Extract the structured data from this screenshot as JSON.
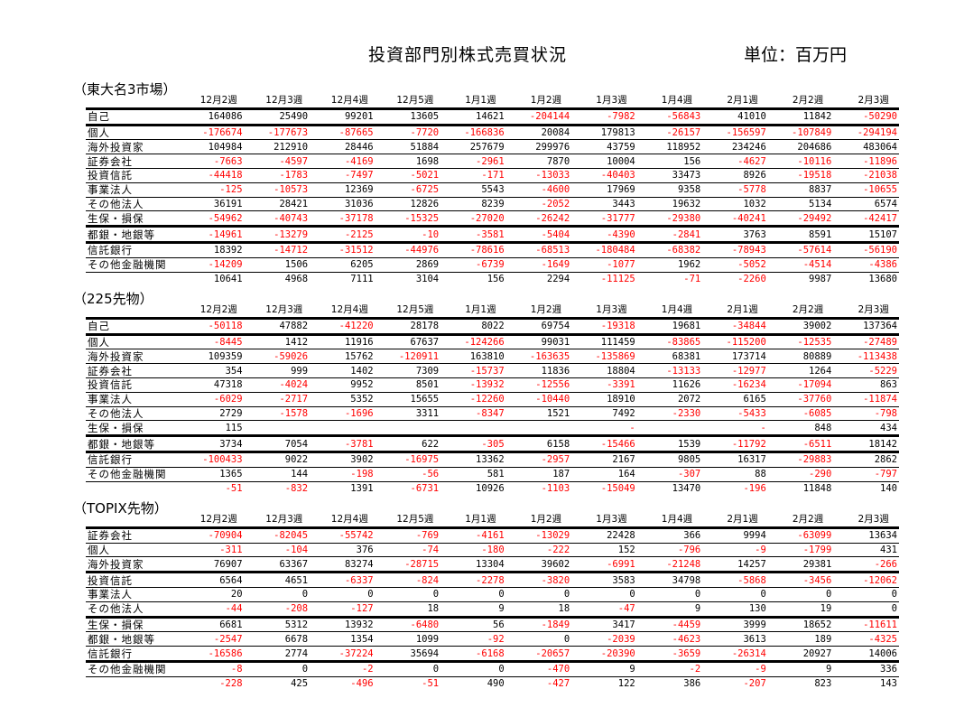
{
  "title": "投資部門別株式売買状況",
  "unit": "単位：百万円",
  "negative_color": "#ff0000",
  "sections": [
    {
      "label": "（東大名3市場）",
      "columns": [
        "12月2週",
        "12月3週",
        "12月4週",
        "12月5週",
        "1月1週",
        "1月2週",
        "1月3週",
        "1月4週",
        "2月1週",
        "2月2週",
        "2月3週"
      ],
      "rows": [
        {
          "label": "自己",
          "values": [
            "164086",
            "25490",
            "99201",
            "13605",
            "14621",
            "-204144",
            "-7982",
            "-56843",
            "41010",
            "11842",
            "-50290"
          ]
        },
        {
          "label": "個人",
          "values": [
            "-176674",
            "-177673",
            "-87665",
            "-7720",
            "-166836",
            "20084",
            "179813",
            "-26157",
            "-156597",
            "-107849",
            "-294194"
          ]
        },
        {
          "label": "海外投資家",
          "values": [
            "104984",
            "212910",
            "28446",
            "51884",
            "257679",
            "299976",
            "43759",
            "118952",
            "234246",
            "204686",
            "483064"
          ]
        },
        {
          "label": "証券会社",
          "values": [
            "-7663",
            "-4597",
            "-4169",
            "1698",
            "-2961",
            "7870",
            "10004",
            "156",
            "-4627",
            "-10116",
            "-11896"
          ]
        },
        {
          "label": "投資信託",
          "values": [
            "-44418",
            "-1783",
            "-7497",
            "-5021",
            "-171",
            "-13033",
            "-40403",
            "33473",
            "8926",
            "-19518",
            "-21038"
          ]
        },
        {
          "label": "事業法人",
          "values": [
            "-125",
            "-10573",
            "12369",
            "-6725",
            "5543",
            "-4600",
            "17969",
            "9358",
            "-5778",
            "8837",
            "-10655"
          ]
        },
        {
          "label": "その他法人",
          "values": [
            "36191",
            "28421",
            "31036",
            "12826",
            "8239",
            "-2052",
            "3443",
            "19632",
            "1032",
            "5134",
            "6574"
          ]
        },
        {
          "label": "生保・損保",
          "values": [
            "-54962",
            "-40743",
            "-37178",
            "-15325",
            "-27020",
            "-26242",
            "-31777",
            "-29380",
            "-40241",
            "-29492",
            "-42417"
          ]
        },
        {
          "label": "都銀・地銀等",
          "values": [
            "-14961",
            "-13279",
            "-2125",
            "-10",
            "-3581",
            "-5404",
            "-4390",
            "-2841",
            "3763",
            "8591",
            "15107"
          ]
        },
        {
          "label": "信託銀行",
          "values": [
            "18392",
            "-14712",
            "-31512",
            "-44976",
            "-78616",
            "-68513",
            "-180484",
            "-68382",
            "-78943",
            "-57614",
            "-56190"
          ]
        },
        {
          "label": "その他金融機関",
          "values": [
            "-14209",
            "1506",
            "6205",
            "2869",
            "-6739",
            "-1649",
            "-1077",
            "1962",
            "-5052",
            "-4514",
            "-4386"
          ]
        },
        {
          "label": "",
          "values": [
            "10641",
            "4968",
            "7111",
            "3104",
            "156",
            "2294",
            "-11125",
            "-71",
            "-2260",
            "9987",
            "13680"
          ]
        }
      ]
    },
    {
      "label": "（225先物）",
      "columns": [
        "12月2週",
        "12月3週",
        "12月4週",
        "12月5週",
        "1月1週",
        "1月2週",
        "1月3週",
        "1月4週",
        "2月1週",
        "2月2週",
        "2月3週"
      ],
      "rows": [
        {
          "label": "自己",
          "values": [
            "-50118",
            "47882",
            "-41220",
            "28178",
            "8022",
            "69754",
            "-19318",
            "19681",
            "-34844",
            "39002",
            "137364"
          ]
        },
        {
          "label": "個人",
          "values": [
            "-8445",
            "1412",
            "11916",
            "67637",
            "-124266",
            "99031",
            "111459",
            "-83865",
            "-115200",
            "-12535",
            "-27489"
          ]
        },
        {
          "label": "海外投資家",
          "values": [
            "109359",
            "-59026",
            "15762",
            "-120911",
            "163810",
            "-163635",
            "-135869",
            "68381",
            "173714",
            "80889",
            "-113438"
          ]
        },
        {
          "label": "証券会社",
          "values": [
            "354",
            "999",
            "1402",
            "7309",
            "-15737",
            "11836",
            "18804",
            "-13133",
            "-12977",
            "1264",
            "-5229"
          ]
        },
        {
          "label": "投資信託",
          "values": [
            "47318",
            "-4024",
            "9952",
            "8501",
            "-13932",
            "-12556",
            "-3391",
            "11626",
            "-16234",
            "-17094",
            "863"
          ]
        },
        {
          "label": "事業法人",
          "values": [
            "-6029",
            "-2717",
            "5352",
            "15655",
            "-12260",
            "-10440",
            "18910",
            "2072",
            "6165",
            "-37760",
            "-11874"
          ]
        },
        {
          "label": "その他法人",
          "values": [
            "2729",
            "-1578",
            "-1696",
            "3311",
            "-8347",
            "1521",
            "7492",
            "-2330",
            "-5433",
            "-6085",
            "-798"
          ]
        },
        {
          "label": "生保・損保",
          "values": [
            "115",
            "",
            "",
            "",
            "",
            "",
            "-",
            "",
            "-",
            "848",
            "434"
          ]
        },
        {
          "label": "都銀・地銀等",
          "values": [
            "3734",
            "7054",
            "-3781",
            "622",
            "-305",
            "6158",
            "-15466",
            "1539",
            "-11792",
            "-6511",
            "18142"
          ]
        },
        {
          "label": "信託銀行",
          "values": [
            "-100433",
            "9022",
            "3902",
            "-16975",
            "13362",
            "-2957",
            "2167",
            "9805",
            "16317",
            "-29883",
            "2862"
          ]
        },
        {
          "label": "その他金融機関",
          "values": [
            "1365",
            "144",
            "-198",
            "-56",
            "581",
            "187",
            "164",
            "-307",
            "88",
            "-290",
            "-797"
          ]
        },
        {
          "label": "",
          "values": [
            "-51",
            "-832",
            "1391",
            "-6731",
            "10926",
            "-1103",
            "-15049",
            "13470",
            "-196",
            "11848",
            "140"
          ]
        }
      ]
    },
    {
      "label": "（TOPIX先物）",
      "columns": [
        "12月2週",
        "12月3週",
        "12月4週",
        "12月5週",
        "1月1週",
        "1月2週",
        "1月3週",
        "1月4週",
        "2月1週",
        "2月2週",
        "2月3週"
      ],
      "rows": [
        {
          "label": "証券会社",
          "values": [
            "-70904",
            "-82045",
            "-55742",
            "-769",
            "-4161",
            "-13029",
            "22428",
            "366",
            "9994",
            "-63099",
            "13634"
          ]
        },
        {
          "label": "個人",
          "values": [
            "-311",
            "-104",
            "376",
            "-74",
            "-180",
            "-222",
            "152",
            "-796",
            "-9",
            "-1799",
            "431"
          ]
        },
        {
          "label": "海外投資家",
          "values": [
            "76907",
            "63367",
            "83274",
            "-28715",
            "13304",
            "39602",
            "-6991",
            "-21248",
            "14257",
            "29381",
            "-266"
          ]
        },
        {
          "label": "投資信託",
          "values": [
            "6564",
            "4651",
            "-6337",
            "-824",
            "-2278",
            "-3820",
            "3583",
            "34798",
            "-5868",
            "-3456",
            "-12062"
          ]
        },
        {
          "label": "事業法人",
          "values": [
            "20",
            "0",
            "0",
            "0",
            "0",
            "0",
            "0",
            "0",
            "0",
            "0",
            "0"
          ]
        },
        {
          "label": "その他法人",
          "values": [
            "-44",
            "-208",
            "-127",
            "18",
            "9",
            "18",
            "-47",
            "9",
            "130",
            "19",
            "0"
          ]
        },
        {
          "label": "生保・損保",
          "values": [
            "6681",
            "5312",
            "13932",
            "-6480",
            "56",
            "-1849",
            "3417",
            "-4459",
            "3999",
            "18652",
            "-11611"
          ]
        },
        {
          "label": "都銀・地銀等",
          "values": [
            "-2547",
            "6678",
            "1354",
            "1099",
            "-92",
            "0",
            "-2039",
            "-4623",
            "3613",
            "189",
            "-4325"
          ]
        },
        {
          "label": "信託銀行",
          "values": [
            "-16586",
            "2774",
            "-37224",
            "35694",
            "-6168",
            "-20657",
            "-20390",
            "-3659",
            "-26314",
            "20927",
            "14006"
          ]
        },
        {
          "label": "その他金融機関",
          "values": [
            "-8",
            "0",
            "-2",
            "0",
            "0",
            "-470",
            "9",
            "-2",
            "-9",
            "9",
            "336"
          ]
        },
        {
          "label": "",
          "values": [
            "-228",
            "425",
            "-496",
            "-51",
            "490",
            "-427",
            "122",
            "386",
            "-207",
            "823",
            "143"
          ]
        }
      ]
    }
  ]
}
